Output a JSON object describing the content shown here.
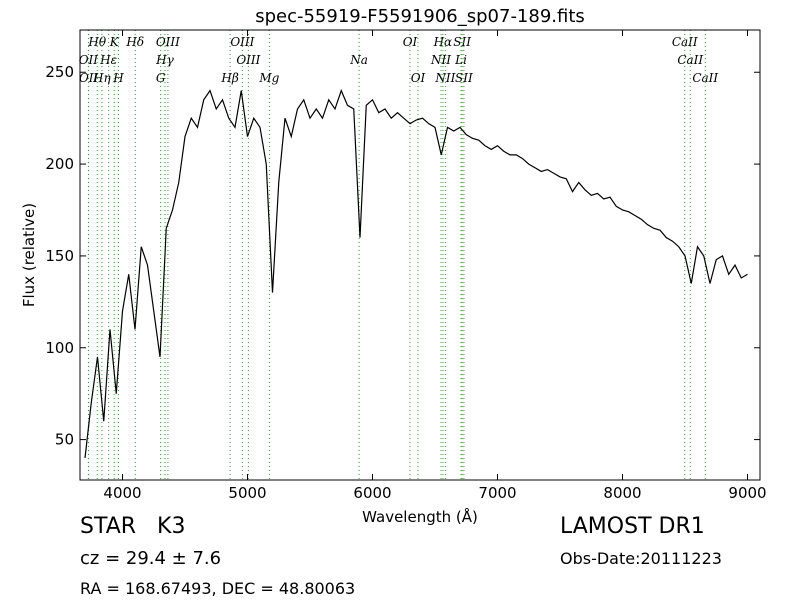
{
  "chart_data": {
    "type": "line",
    "title": "spec-55919-F5591906_sp07-189.fits",
    "x_label": "Wavelength (Å)",
    "y_label": "Flux (relative)",
    "xlim": [
      3660,
      9100
    ],
    "ylim": [
      28,
      273
    ],
    "xticks": [
      4000,
      5000,
      6000,
      7000,
      8000,
      9000
    ],
    "yticks": [
      50,
      100,
      150,
      200,
      250
    ],
    "color": "#000000",
    "line_color": "#2ca02c",
    "x": [
      3700,
      3750,
      3800,
      3850,
      3900,
      3950,
      4000,
      4050,
      4100,
      4150,
      4200,
      4250,
      4300,
      4350,
      4400,
      4450,
      4500,
      4550,
      4600,
      4650,
      4700,
      4750,
      4800,
      4850,
      4900,
      4950,
      5000,
      5050,
      5100,
      5150,
      5200,
      5250,
      5300,
      5350,
      5400,
      5450,
      5500,
      5550,
      5600,
      5650,
      5700,
      5750,
      5800,
      5850,
      5900,
      5950,
      6000,
      6050,
      6100,
      6150,
      6200,
      6250,
      6300,
      6350,
      6400,
      6450,
      6500,
      6550,
      6600,
      6650,
      6700,
      6750,
      6800,
      6850,
      6900,
      6950,
      7000,
      7050,
      7100,
      7150,
      7200,
      7250,
      7300,
      7350,
      7400,
      7450,
      7500,
      7550,
      7600,
      7650,
      7700,
      7750,
      7800,
      7850,
      7900,
      7950,
      8000,
      8050,
      8100,
      8150,
      8200,
      8250,
      8300,
      8350,
      8400,
      8450,
      8500,
      8550,
      8600,
      8650,
      8700,
      8750,
      8800,
      8850,
      8900,
      8950,
      9000
    ],
    "values": [
      40,
      70,
      95,
      60,
      110,
      75,
      120,
      140,
      110,
      155,
      145,
      120,
      95,
      165,
      175,
      190,
      215,
      225,
      220,
      235,
      240,
      230,
      235,
      225,
      220,
      240,
      215,
      225,
      220,
      200,
      130,
      190,
      225,
      215,
      230,
      235,
      225,
      230,
      225,
      235,
      230,
      240,
      232,
      230,
      160,
      232,
      235,
      228,
      230,
      225,
      228,
      225,
      222,
      224,
      225,
      222,
      220,
      205,
      220,
      218,
      220,
      216,
      214,
      213,
      210,
      208,
      210,
      207,
      205,
      205,
      203,
      200,
      198,
      196,
      197,
      195,
      193,
      192,
      185,
      190,
      186,
      183,
      184,
      181,
      182,
      177,
      175,
      174,
      172,
      170,
      167,
      165,
      164,
      160,
      158,
      155,
      150,
      135,
      155,
      150,
      135,
      148,
      150,
      140,
      145,
      138,
      140
    ],
    "spectral_lines": [
      [
        {
          "label": "Hθ",
          "wavelength": 3798
        },
        {
          "label": "K",
          "wavelength": 3934
        },
        {
          "label": "Hδ",
          "wavelength": 4102
        },
        {
          "label": "OIII",
          "wavelength": 4363
        },
        {
          "label": "OIII",
          "wavelength": 4959
        },
        {
          "label": "OI",
          "wavelength": 6300
        },
        {
          "label": "Hα",
          "wavelength": 6563
        },
        {
          "label": "SII",
          "wavelength": 6717
        },
        {
          "label": "CaII",
          "wavelength": 8498
        }
      ],
      [
        {
          "label": "OII",
          "wavelength": 3727
        },
        {
          "label": "Hε",
          "wavelength": 3889
        },
        {
          "label": "Hγ",
          "wavelength": 4340
        },
        {
          "label": "OIII",
          "wavelength": 5007
        },
        {
          "label": "Na",
          "wavelength": 5893
        },
        {
          "label": "NII",
          "wavelength": 6548
        },
        {
          "label": "Li",
          "wavelength": 6708
        },
        {
          "label": "CaII",
          "wavelength": 8542
        }
      ],
      [
        {
          "label": "OII",
          "wavelength": 3729
        },
        {
          "label": "Hη",
          "wavelength": 3835
        },
        {
          "label": "H",
          "wavelength": 3968
        },
        {
          "label": "G",
          "wavelength": 4305
        },
        {
          "label": "Hβ",
          "wavelength": 4861
        },
        {
          "label": "Mg",
          "wavelength": 5175
        },
        {
          "label": "OI",
          "wavelength": 6364
        },
        {
          "label": "NII",
          "wavelength": 6583
        },
        {
          "label": "SII",
          "wavelength": 6731
        },
        {
          "label": "CaII",
          "wavelength": 8662
        }
      ]
    ],
    "object": "STAR   K3",
    "survey": "LAMOST DR1",
    "redshift": "cz = 29.4 ± 7.6",
    "obs_date": "Obs-Date:20111223",
    "coords": "RA = 168.67493, DEC = 48.80063"
  }
}
